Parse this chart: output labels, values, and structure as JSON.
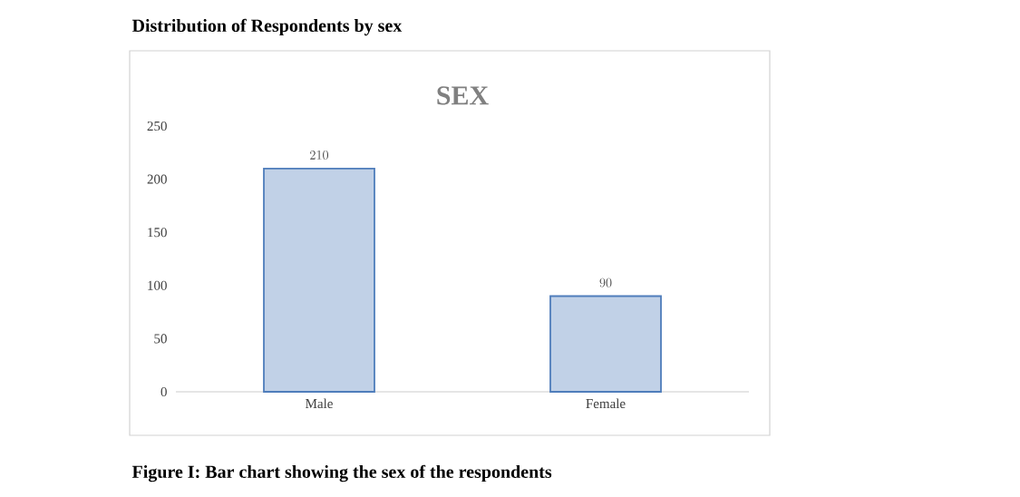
{
  "chart_data": {
    "type": "bar",
    "title": "SEX",
    "categories": [
      "Male",
      "Female"
    ],
    "values": [
      210,
      90
    ],
    "color": "#4f7dbb",
    "ylim": [
      0,
      250
    ],
    "yticks": [
      0,
      50,
      100,
      150,
      200,
      250
    ],
    "grid": false,
    "data_labels": true,
    "annotations": [
      "Distribution of Respondents by sex",
      "Figure I: Bar chart showing the sex of the respondents"
    ]
  }
}
